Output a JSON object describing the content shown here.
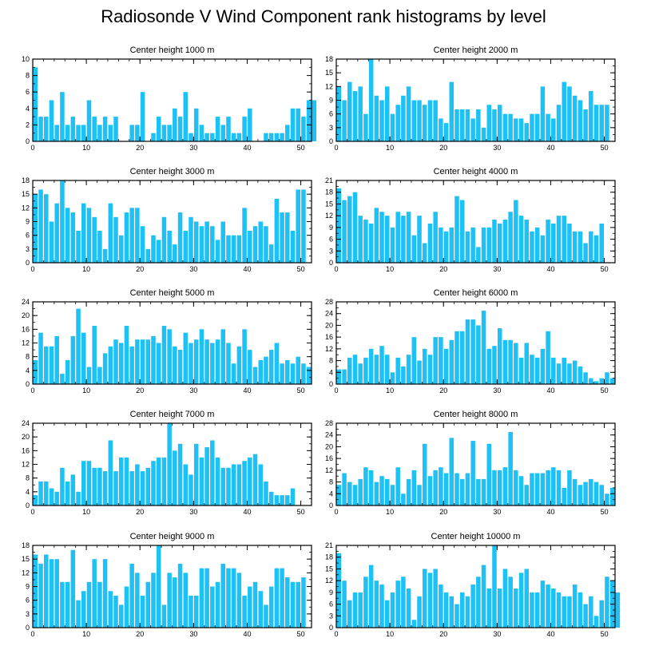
{
  "figure_title": "Radiosonde V Wind Component rank histograms by level",
  "colors": {
    "bar": "#1ec1f5",
    "bar_edge": "#ffffff",
    "axis": "#000000",
    "background": "#ffffff"
  },
  "chart_data": [
    {
      "type": "bar",
      "title": "Center height 1000 m",
      "xlabel": "",
      "ylabel": "",
      "xlim": [
        0,
        52
      ],
      "ylim": [
        0,
        10
      ],
      "xticks": [
        0,
        10,
        20,
        30,
        40,
        50
      ],
      "yticks": [
        0,
        2,
        4,
        6,
        8,
        10
      ],
      "values": [
        9,
        3,
        3,
        5,
        2,
        6,
        2,
        3,
        2,
        2,
        5,
        3,
        2,
        3,
        2,
        3,
        0,
        0,
        2,
        2,
        6,
        0,
        1,
        3,
        2,
        2,
        4,
        3,
        6,
        1,
        4,
        2,
        1,
        1,
        3,
        2,
        3,
        1,
        1,
        3,
        4,
        0,
        0,
        1,
        1,
        1,
        1,
        2,
        4,
        4,
        3,
        5,
        5
      ]
    },
    {
      "type": "bar",
      "title": "Center height 2000 m",
      "xlabel": "",
      "ylabel": "",
      "xlim": [
        0,
        52
      ],
      "ylim": [
        0,
        18
      ],
      "xticks": [
        0,
        10,
        20,
        30,
        40,
        50
      ],
      "yticks": [
        0,
        3,
        6,
        9,
        12,
        15,
        18
      ],
      "values": [
        12,
        9,
        13,
        11,
        12,
        6,
        18,
        10,
        9,
        12,
        6,
        8,
        10,
        12,
        9,
        9,
        8,
        9,
        9,
        5,
        4,
        13,
        7,
        7,
        7,
        5,
        7,
        3,
        8,
        7,
        8,
        6,
        6,
        5,
        5,
        4,
        6,
        6,
        12,
        6,
        5,
        8,
        13,
        12,
        10,
        9,
        7,
        11,
        8,
        8,
        8,
        0,
        0
      ]
    },
    {
      "type": "bar",
      "title": "Center height 3000 m",
      "xlabel": "",
      "ylabel": "",
      "xlim": [
        0,
        52
      ],
      "ylim": [
        0,
        18
      ],
      "xticks": [
        0,
        10,
        20,
        30,
        40,
        50
      ],
      "yticks": [
        0,
        3,
        6,
        9,
        12,
        15,
        18
      ],
      "values": [
        15,
        16,
        15,
        9,
        13,
        18,
        12,
        11,
        7,
        13,
        12,
        10,
        7,
        3,
        13,
        10,
        6,
        11,
        12,
        12,
        8,
        3,
        6,
        5,
        10,
        7,
        4,
        11,
        7,
        10,
        9,
        8,
        9,
        8,
        5,
        9,
        6,
        6,
        6,
        12,
        7,
        8,
        9,
        8,
        4,
        14,
        11,
        11,
        7,
        16,
        16,
        0,
        0
      ]
    },
    {
      "type": "bar",
      "title": "Center height 4000 m",
      "xlabel": "",
      "ylabel": "",
      "xlim": [
        0,
        52
      ],
      "ylim": [
        0,
        21
      ],
      "xticks": [
        0,
        10,
        20,
        30,
        40,
        50
      ],
      "yticks": [
        0,
        3,
        6,
        9,
        12,
        15,
        18,
        21
      ],
      "values": [
        19,
        16,
        17,
        18,
        12,
        11,
        10,
        14,
        13,
        12,
        9,
        13,
        12,
        13,
        7,
        12,
        5,
        10,
        13,
        9,
        8,
        9,
        17,
        16,
        8,
        9,
        4,
        9,
        9,
        11,
        10,
        11,
        13,
        16,
        12,
        11,
        8,
        9,
        7,
        11,
        10,
        12,
        12,
        10,
        8,
        8,
        5,
        8,
        7,
        10,
        0,
        0,
        0
      ]
    },
    {
      "type": "bar",
      "title": "Center height 5000 m",
      "xlabel": "",
      "ylabel": "",
      "xlim": [
        0,
        52
      ],
      "ylim": [
        0,
        24
      ],
      "xticks": [
        0,
        10,
        20,
        30,
        40,
        50
      ],
      "yticks": [
        0,
        4,
        8,
        12,
        16,
        20,
        24
      ],
      "values": [
        7,
        15,
        11,
        11,
        14,
        3,
        7,
        14,
        22,
        15,
        5,
        17,
        5,
        9,
        11,
        13,
        12,
        17,
        11,
        13,
        13,
        13,
        14,
        12,
        17,
        16,
        11,
        10,
        15,
        12,
        13,
        16,
        13,
        12,
        13,
        16,
        12,
        6,
        11,
        16,
        10,
        5,
        7,
        8,
        10,
        12,
        6,
        7,
        6,
        8,
        6,
        5,
        0
      ]
    },
    {
      "type": "bar",
      "title": "Center height 6000 m",
      "xlabel": "",
      "ylabel": "",
      "xlim": [
        0,
        52
      ],
      "ylim": [
        0,
        28
      ],
      "xticks": [
        0,
        10,
        20,
        30,
        40,
        50
      ],
      "yticks": [
        0,
        4,
        8,
        12,
        16,
        20,
        24,
        28
      ],
      "values": [
        5,
        5,
        9,
        10,
        7,
        9,
        12,
        10,
        13,
        10,
        4,
        9,
        6,
        10,
        16,
        8,
        12,
        10,
        16,
        16,
        12,
        15,
        18,
        18,
        22,
        22,
        20,
        25,
        12,
        13,
        19,
        15,
        15,
        14,
        9,
        14,
        10,
        9,
        12,
        18,
        9,
        7,
        9,
        7,
        8,
        6,
        4,
        2,
        1,
        2,
        4,
        2,
        0
      ]
    },
    {
      "type": "bar",
      "title": "Center height 7000 m",
      "xlabel": "",
      "ylabel": "",
      "xlim": [
        0,
        52
      ],
      "ylim": [
        0,
        24
      ],
      "xticks": [
        0,
        10,
        20,
        30,
        40,
        50
      ],
      "yticks": [
        0,
        4,
        8,
        12,
        16,
        20,
        24
      ],
      "values": [
        3,
        7,
        7,
        5,
        4,
        11,
        7,
        9,
        4,
        13,
        13,
        11,
        11,
        10,
        19,
        10,
        14,
        14,
        10,
        12,
        10,
        11,
        13,
        14,
        14,
        24,
        16,
        18,
        12,
        9,
        18,
        14,
        17,
        19,
        14,
        11,
        11,
        12,
        12,
        13,
        14,
        15,
        12,
        7,
        4,
        3,
        3,
        3,
        5,
        0,
        0,
        0,
        0
      ]
    },
    {
      "type": "bar",
      "title": "Center height 8000 m",
      "xlabel": "",
      "ylabel": "",
      "xlim": [
        0,
        52
      ],
      "ylim": [
        0,
        28
      ],
      "xticks": [
        0,
        10,
        20,
        30,
        40,
        50
      ],
      "yticks": [
        0,
        4,
        8,
        12,
        16,
        20,
        24,
        28
      ],
      "values": [
        7,
        11,
        8,
        7,
        9,
        13,
        12,
        8,
        10,
        9,
        7,
        13,
        4,
        9,
        12,
        7,
        21,
        10,
        12,
        13,
        11,
        23,
        11,
        9,
        11,
        22,
        9,
        9,
        21,
        12,
        12,
        13,
        25,
        12,
        10,
        7,
        11,
        11,
        11,
        12,
        13,
        12,
        6,
        12,
        9,
        7,
        8,
        9,
        8,
        7,
        4,
        6,
        0
      ]
    },
    {
      "type": "bar",
      "title": "Center height 9000 m",
      "xlabel": "",
      "ylabel": "",
      "xlim": [
        0,
        52
      ],
      "ylim": [
        0,
        18
      ],
      "xticks": [
        0,
        10,
        20,
        30,
        40,
        50
      ],
      "yticks": [
        0,
        3,
        6,
        9,
        12,
        15,
        18
      ],
      "values": [
        16,
        14,
        16,
        15,
        15,
        10,
        10,
        17,
        6,
        8,
        10,
        15,
        10,
        15,
        8,
        7,
        5,
        9,
        14,
        12,
        7,
        10,
        12,
        18,
        5,
        12,
        11,
        14,
        12,
        7,
        7,
        13,
        13,
        9,
        10,
        14,
        13,
        13,
        12,
        7,
        9,
        10,
        8,
        5,
        9,
        13,
        13,
        11,
        10,
        10,
        11,
        0,
        0
      ]
    },
    {
      "type": "bar",
      "title": "Center height 10000 m",
      "xlabel": "",
      "ylabel": "",
      "xlim": [
        0,
        52
      ],
      "ylim": [
        0,
        21
      ],
      "xticks": [
        0,
        10,
        20,
        30,
        40,
        50
      ],
      "yticks": [
        0,
        3,
        6,
        9,
        12,
        15,
        18,
        21
      ],
      "values": [
        19,
        12,
        7,
        9,
        9,
        13,
        16,
        12,
        11,
        7,
        9,
        12,
        13,
        10,
        2,
        8,
        15,
        14,
        15,
        11,
        9,
        8,
        6,
        9,
        8,
        11,
        13,
        16,
        10,
        21,
        10,
        15,
        13,
        10,
        14,
        15,
        9,
        9,
        12,
        11,
        10,
        9,
        8,
        8,
        11,
        9,
        6,
        8,
        3,
        7,
        13,
        12,
        9
      ]
    }
  ]
}
